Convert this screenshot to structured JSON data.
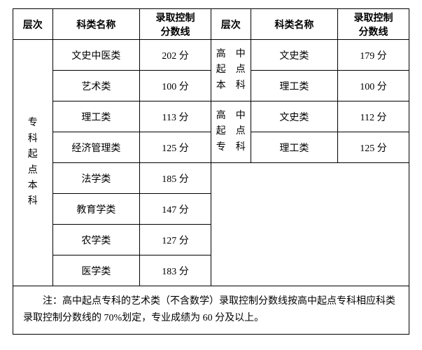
{
  "headers": {
    "level": "层次",
    "category": "科类名称",
    "scoreline_l1": "录取控制",
    "scoreline_l2": "分数线"
  },
  "left": {
    "level_chars": [
      "专",
      "科",
      "起",
      "点",
      "本",
      "科"
    ],
    "rows": [
      {
        "category": "文史中医类",
        "score": "202 分"
      },
      {
        "category": "艺术类",
        "score": "100 分"
      },
      {
        "category": "理工类",
        "score": "113 分"
      },
      {
        "category": "经济管理类",
        "score": "125 分"
      },
      {
        "category": "法学类",
        "score": "185 分"
      },
      {
        "category": "教育学类",
        "score": "147 分"
      },
      {
        "category": "农学类",
        "score": "127 分"
      },
      {
        "category": "医学类",
        "score": "183 分"
      }
    ]
  },
  "right": {
    "group1": {
      "level_chars": [
        "高　中",
        "起　点",
        "本　科"
      ],
      "rows": [
        {
          "category": "文史类",
          "score": "179 分"
        },
        {
          "category": "理工类",
          "score": "100 分"
        }
      ]
    },
    "group2": {
      "level_chars": [
        "高　中",
        "起　点",
        "专　科"
      ],
      "rows": [
        {
          "category": "文史类",
          "score": "112 分"
        },
        {
          "category": "理工类",
          "score": "125 分"
        }
      ]
    }
  },
  "note": "注：高中起点专科的艺术类（不含数学）录取控制分数线按高中起点专科相应科类录取控制分数线的 70%划定，专业成绩为 60 分及以上。"
}
